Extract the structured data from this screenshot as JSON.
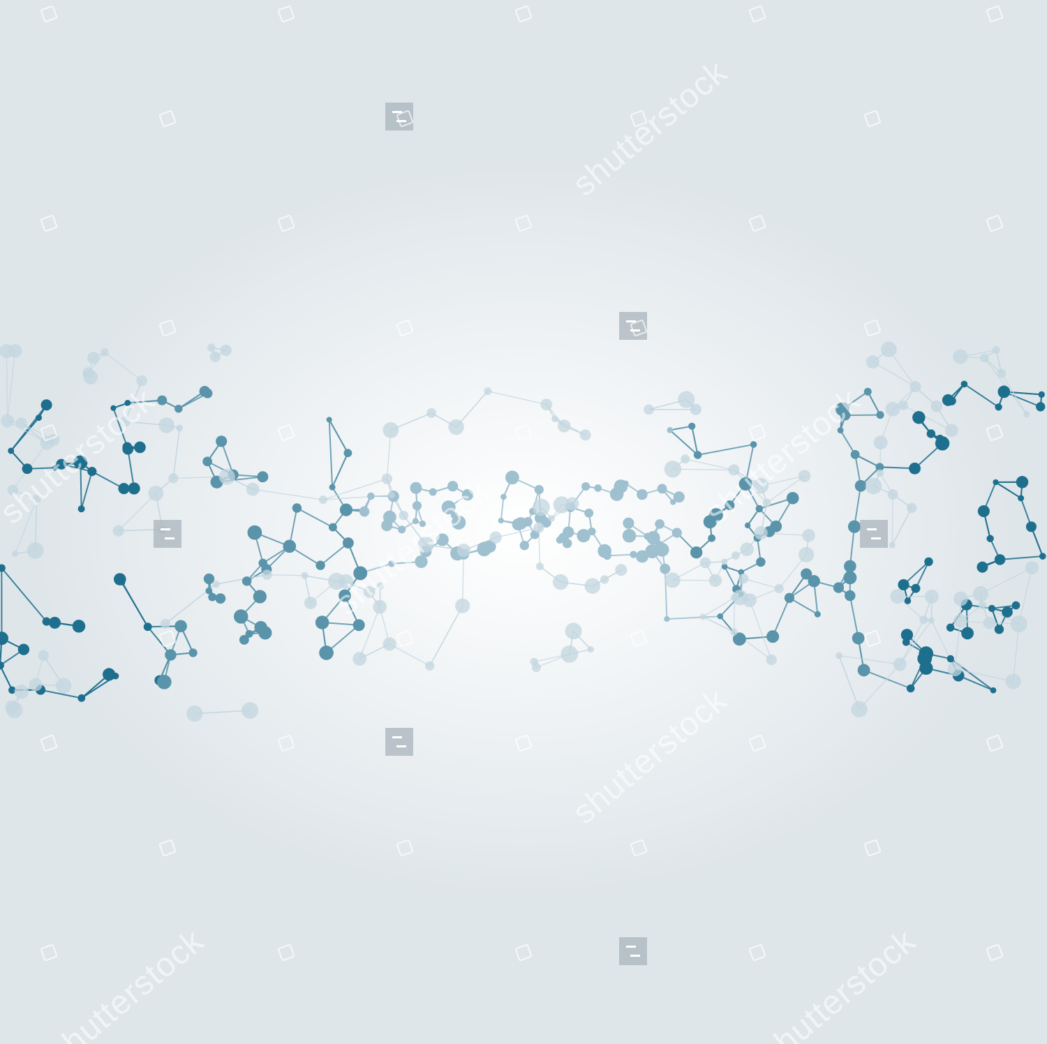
{
  "image": {
    "background_center": "#ffffff",
    "background_edge": "#dfe6ea",
    "molecule_colors": {
      "dark": "#1e6f8e",
      "mid": "#5a94aa",
      "light": "#9ec0cf",
      "faint": "#c3d6df"
    },
    "watermark": {
      "text": "shutterstock",
      "color": "#ffffff"
    }
  }
}
